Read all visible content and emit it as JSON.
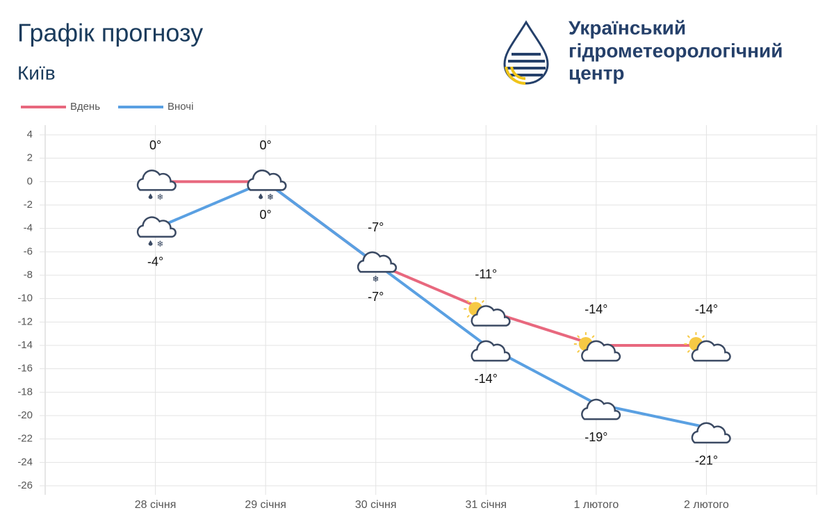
{
  "chart_data": {
    "type": "line",
    "title": "Графік прогнозу",
    "subtitle": "Київ",
    "categories": [
      "28 січня",
      "29 січня",
      "30 січня",
      "31 січня",
      "1 лютого",
      "2 лютого"
    ],
    "series": [
      {
        "name": "Вдень",
        "color": "#e8687e",
        "values": [
          0,
          0,
          -7,
          -11,
          -14,
          -14
        ],
        "value_labels": [
          "0°",
          "0°",
          "-7°",
          "-11°",
          "-14°",
          "-14°"
        ]
      },
      {
        "name": "Вночі",
        "color": "#5aa0e2",
        "values": [
          -4,
          0,
          -7,
          -14,
          -19,
          -21
        ],
        "value_labels": [
          "-4°",
          "0°",
          "-7°",
          "-14°",
          "-19°",
          "-21°"
        ]
      }
    ],
    "ylim": [
      -26,
      4
    ],
    "yticks": [
      4,
      2,
      0,
      -2,
      -4,
      -6,
      -8,
      -10,
      -12,
      -14,
      -16,
      -18,
      -20,
      -22,
      -24,
      -26
    ],
    "grid": true
  },
  "organization": {
    "lines": [
      "Український",
      "гідрометеорологічний",
      "центр"
    ]
  }
}
